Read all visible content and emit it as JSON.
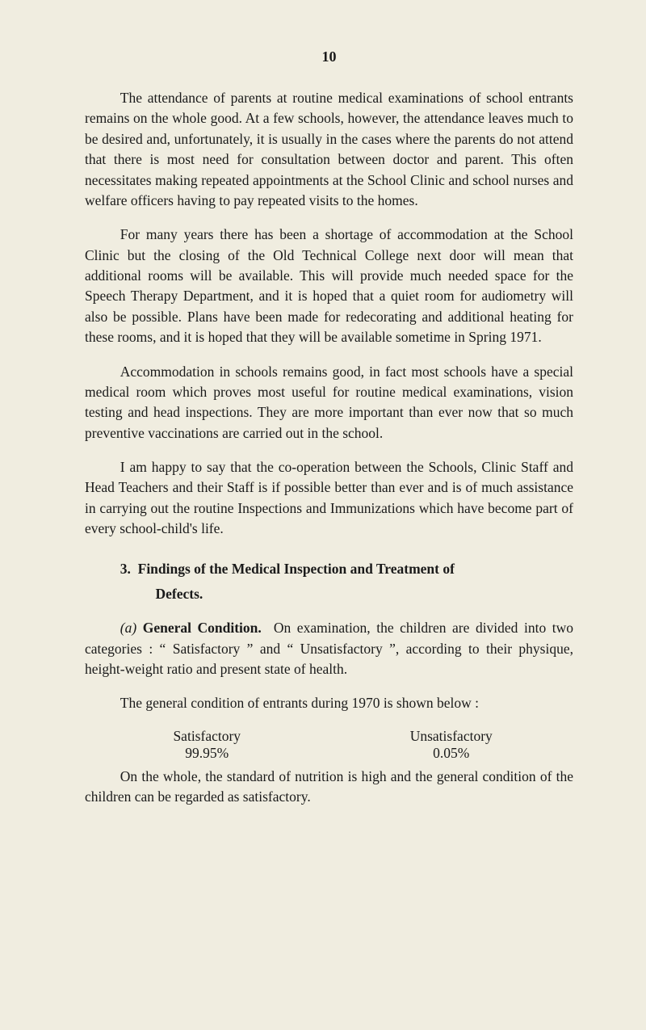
{
  "page_number": "10",
  "paragraphs": {
    "p1": "The attendance of parents at routine medical examinations of school entrants remains on the whole good. At a few schools, however, the attendance leaves much to be desired and, unfortunately, it is usually in the cases where the parents do not attend that there is most need for consultation between doctor and parent. This often necessitates making repeated appointments at the School Clinic and school nurses and welfare officers having to pay repeated visits to the homes.",
    "p2": "For many years there has been a shortage of accommodation at the School Clinic but the closing of the Old Technical College next door will mean that additional rooms will be available. This will provide much needed space for the Speech Therapy Department, and it is hoped that a quiet room for audiometry will also be possible. Plans have been made for redecorating and additional heating for these rooms, and it is hoped that they will be available sometime in Spring 1971.",
    "p3": "Accommodation in schools remains good, in fact most schools have a special medical room which proves most useful for routine medical examinations, vision testing and head inspections. They are more important than ever now that so much preventive vaccinations are carried out in the school.",
    "p4": "I am happy to say that the co-operation between the Schools, Clinic Staff and Head Teachers and their Staff is if possible better than ever and is of much assistance in carrying out the routine Inspections and Immunizations which have become part of every school-child's life."
  },
  "section3": {
    "number": "3.",
    "title": "Findings of the Medical Inspection and Treatment of",
    "title_cont": "Defects.",
    "sub_a_label": "(a)",
    "sub_a_title": "General Condition.",
    "sub_a_text": "On examination, the children are divided into two categories : “ Satisfactory ” and “ Unsatisfactory ”, according to their physique, height-weight ratio and present state of health.",
    "table_intro": "The general condition of entrants during 1970 is shown below :",
    "table": {
      "col1_label": "Satisfactory",
      "col1_value": "99.95%",
      "col2_label": "Unsatisfactory",
      "col2_value": "0.05%"
    },
    "closing": "On the whole, the standard of nutrition is high and the general condition of the children can be regarded as satisfactory."
  }
}
